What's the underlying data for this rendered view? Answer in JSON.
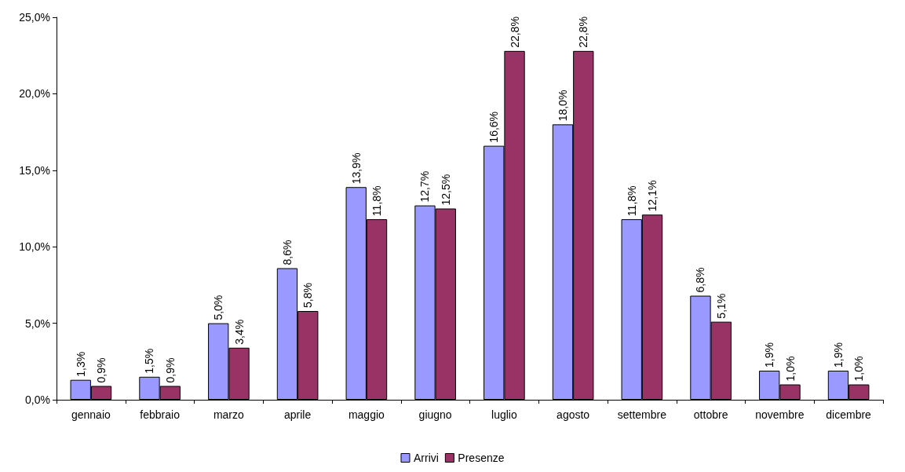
{
  "chart_data": {
    "type": "bar",
    "categories": [
      "gennaio",
      "febbraio",
      "marzo",
      "aprile",
      "maggio",
      "giugno",
      "luglio",
      "agosto",
      "settembre",
      "ottobre",
      "novembre",
      "dicembre"
    ],
    "series": [
      {
        "name": "Arrivi",
        "color": "#9999ff",
        "values": [
          1.3,
          1.5,
          5.0,
          8.6,
          13.9,
          12.7,
          16.6,
          18.0,
          11.8,
          6.8,
          1.9,
          1.9
        ],
        "value_labels": [
          "1,3%",
          "1,5%",
          "5,0%",
          "8,6%",
          "13,9%",
          "12,7%",
          "16,6%",
          "18,0%",
          "11,8%",
          "6,8%",
          "1,9%",
          "1,9%"
        ]
      },
      {
        "name": "Presenze",
        "color": "#993366",
        "values": [
          0.9,
          0.9,
          3.4,
          5.8,
          11.8,
          12.5,
          22.8,
          22.8,
          12.1,
          5.1,
          1.0,
          1.0
        ],
        "value_labels": [
          "0,9%",
          "0,9%",
          "3,4%",
          "5,8%",
          "11,8%",
          "12,5%",
          "22,8%",
          "22,8%",
          "12,1%",
          "5,1%",
          "1,0%",
          "1,0%"
        ]
      }
    ],
    "ylim": [
      0,
      25
    ],
    "yticks": [
      {
        "value": 0,
        "label": "0,0%"
      },
      {
        "value": 5,
        "label": "5,0%"
      },
      {
        "value": 10,
        "label": "10,0%"
      },
      {
        "value": 15,
        "label": "15,0%"
      },
      {
        "value": 20,
        "label": "20,0%"
      },
      {
        "value": 25,
        "label": "25,0%"
      }
    ],
    "grid": false,
    "legend": "bottom"
  }
}
